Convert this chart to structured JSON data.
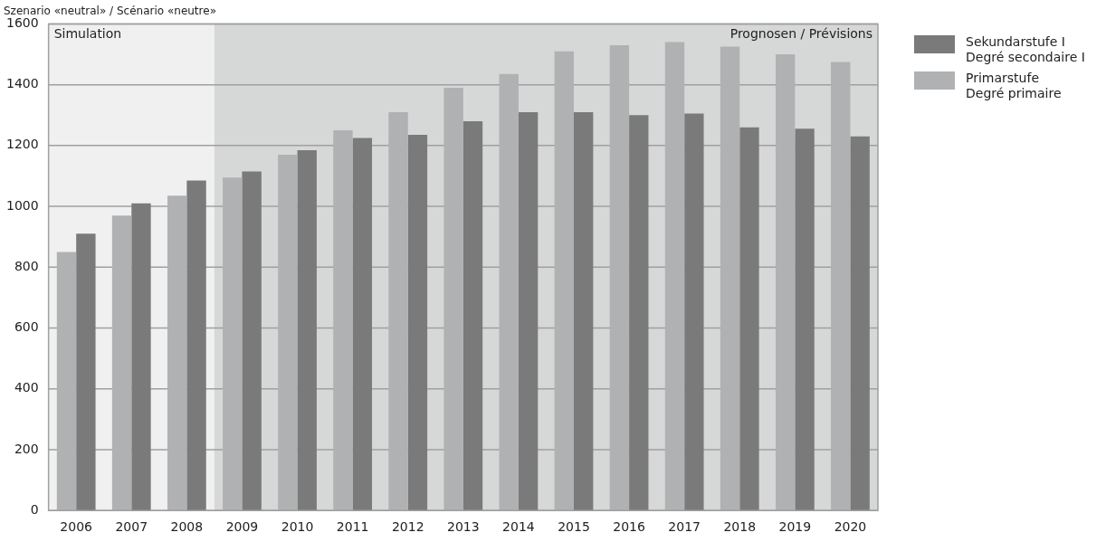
{
  "chart_data": {
    "type": "bar",
    "title": "Szenario «neutral» / Scénario «neutre»",
    "categories": [
      "2006",
      "2007",
      "2008",
      "2009",
      "2010",
      "2011",
      "2012",
      "2013",
      "2014",
      "2015",
      "2016",
      "2017",
      "2018",
      "2019",
      "2020"
    ],
    "series": [
      {
        "name": "Primarstufe\nDegré primaire",
        "color": "#b0b1b3",
        "values": [
          850,
          970,
          1035,
          1095,
          1170,
          1250,
          1310,
          1390,
          1435,
          1510,
          1530,
          1540,
          1525,
          1500,
          1475
        ]
      },
      {
        "name": "Sekundarstufe I\nDegré secondaire I",
        "color": "#7a7a7a",
        "values": [
          910,
          1010,
          1085,
          1115,
          1185,
          1225,
          1235,
          1280,
          1310,
          1310,
          1300,
          1305,
          1260,
          1255,
          1230
        ]
      }
    ],
    "ylim": [
      0,
      1600
    ],
    "yticks": [
      0,
      200,
      400,
      600,
      800,
      1000,
      1200,
      1400,
      1600
    ],
    "bands": [
      {
        "axis": "x",
        "from": "2006",
        "to": "2008",
        "label": "Simulation",
        "color": "#f0f0f0"
      },
      {
        "axis": "x",
        "from": "2009",
        "to": "2020",
        "label": "Prognosen / Prévisions",
        "color": "#d6d7d7"
      }
    ],
    "grid": "y",
    "legend": "right"
  }
}
